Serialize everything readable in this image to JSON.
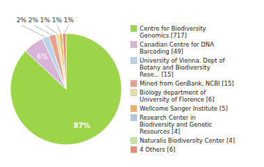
{
  "chart_data": {
    "type": "pie",
    "categories": [
      "Centre for Biodiversity\nGenomics [717]",
      "Canadian Centre for DNA\nBarcoding [49]",
      "University of Vienna. Dept of\nBotany and Biodiversity\nRese... [15]",
      "Mined from GenBank, NCBI [15]",
      "Biology department of\nUniversity of Florence [6]",
      "Wellcome Sanger Institute [5]",
      "Research Center in\nBiodiversity and Genetic\nResources [4]",
      "Naturalis Biodiversity Center [4]",
      "4 Others [6]"
    ],
    "values": [
      87,
      6,
      2,
      2,
      1,
      1,
      0,
      0,
      1
    ],
    "value_labels": [
      "87%",
      "6%",
      "2%",
      "2%",
      "1%",
      "1%",
      null,
      null,
      "1%"
    ],
    "colors": [
      "#9dd54a",
      "#d8b4d8",
      "#b8d4e8",
      "#e8a090",
      "#e8e0a0",
      "#f0b060",
      "#b0c8e0",
      "#c8e6a0",
      "#e09070"
    ],
    "data_labels": true,
    "legend": "right"
  }
}
